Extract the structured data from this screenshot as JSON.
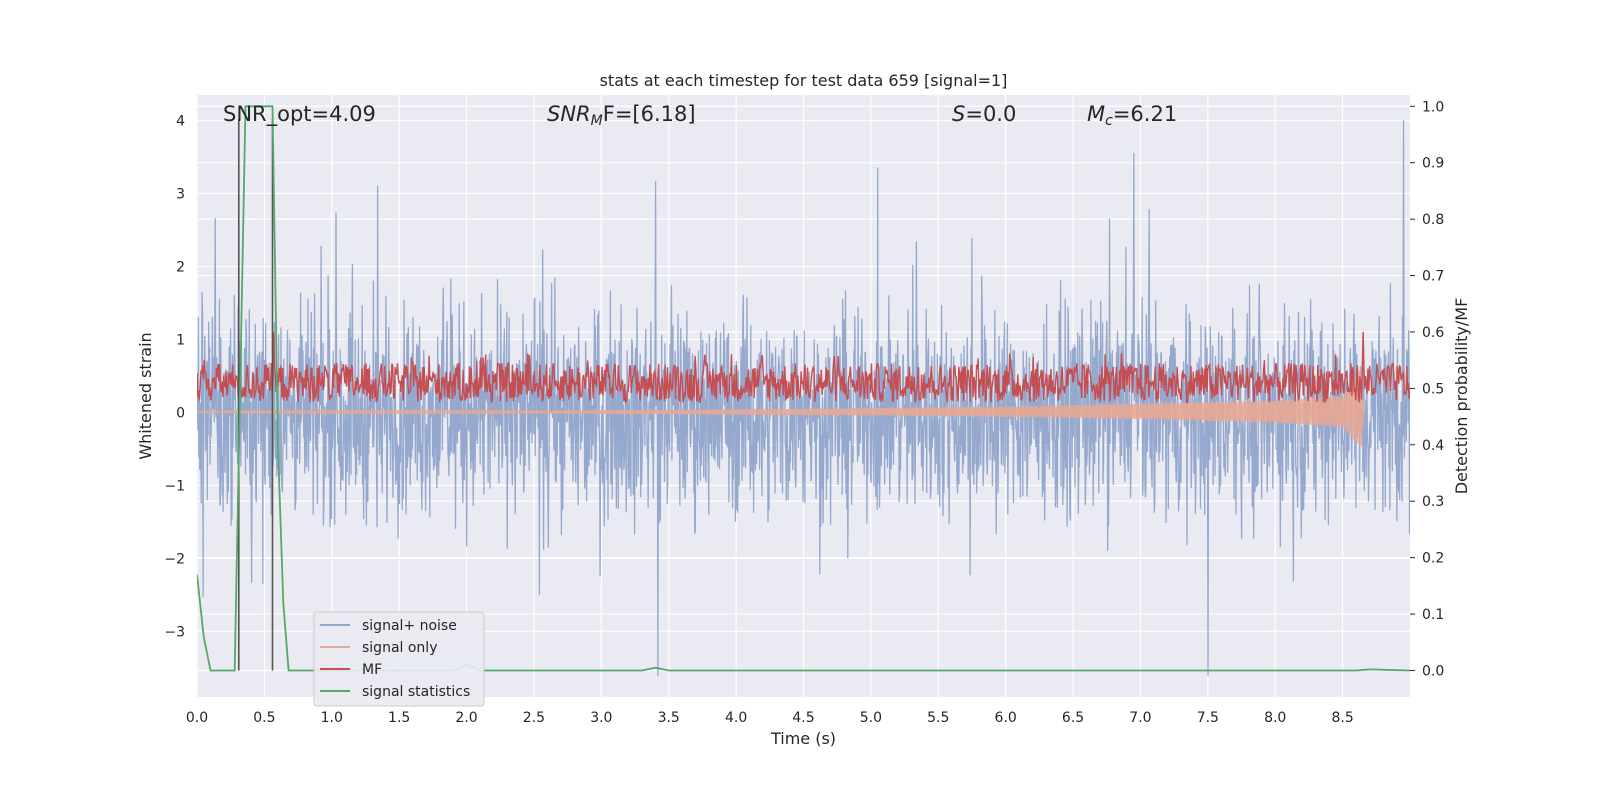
{
  "chart_data": {
    "type": "line",
    "title": "stats at each timestep for test data 659 [signal=1]",
    "xlabel": "Time (s)",
    "ylabel": "Whitened strain",
    "ylabel_right": "Detection probability/MF",
    "xlim": [
      0.0,
      9.0
    ],
    "ylim": [
      -3.9,
      4.35
    ],
    "ylim_right": [
      -0.047,
      1.02
    ],
    "xticks": [
      "0.0",
      "0.5",
      "1.0",
      "1.5",
      "2.0",
      "2.5",
      "3.0",
      "3.5",
      "4.0",
      "4.5",
      "5.0",
      "5.5",
      "6.0",
      "6.5",
      "7.0",
      "7.5",
      "8.0",
      "8.5"
    ],
    "yticks_left": [
      "4",
      "3",
      "2",
      "1",
      "0",
      "−1",
      "−2",
      "−3"
    ],
    "yticks_right": [
      "1.0",
      "0.9",
      "0.8",
      "0.7",
      "0.6",
      "0.5",
      "0.4",
      "0.3",
      "0.2",
      "0.1",
      "0.0"
    ],
    "grid": true,
    "legend_position": "lower-left",
    "annotations": {
      "snr_opt": "SNR_opt=4.09",
      "snr_mf_sym": "SNR",
      "snr_mf_sub": "M",
      "snr_mf_rest": "F=[6.18]",
      "s_sym": "S",
      "s_rest": "=0.0",
      "mc_sym": "M",
      "mc_sub": "c",
      "mc_rest": "=6.21"
    },
    "vertical_markers_x": [
      0.31,
      0.56
    ],
    "series": [
      {
        "name": "signal+ noise",
        "axis": "left",
        "color": "#95a8cd",
        "description_range": [
          -3.6,
          4.0
        ],
        "notable_peaks": [
          [
            1.34,
            3.1
          ],
          [
            5.05,
            3.35
          ],
          [
            6.95,
            3.55
          ],
          [
            8.95,
            4.0
          ],
          [
            3.42,
            -3.6
          ],
          [
            7.5,
            -3.6
          ]
        ]
      },
      {
        "name": "signal only",
        "axis": "left",
        "color": "#e8a793",
        "x": [
          0.0,
          1.0,
          2.0,
          3.0,
          4.0,
          5.0,
          6.0,
          7.0,
          8.0,
          8.5,
          8.64,
          8.66
        ],
        "envelope_low": [
          0.0,
          -0.01,
          -0.01,
          -0.02,
          -0.03,
          -0.04,
          -0.06,
          -0.09,
          -0.14,
          -0.2,
          -0.48,
          0.0
        ],
        "envelope_high": [
          0.02,
          0.02,
          0.02,
          0.03,
          0.04,
          0.06,
          0.08,
          0.12,
          0.16,
          0.22,
          0.62,
          0.0
        ]
      },
      {
        "name": "MF",
        "axis": "right",
        "color": "#c44e52",
        "baseline": 0.5,
        "band": [
          0.475,
          0.545
        ],
        "peaks": [
          [
            0.57,
            0.6
          ],
          [
            8.65,
            0.6
          ],
          [
            8.45,
            0.56
          ]
        ]
      },
      {
        "name": "signal statistics",
        "axis": "right",
        "color": "#55a868",
        "x": [
          0.0,
          0.05,
          0.1,
          0.25,
          0.28,
          0.36,
          0.42,
          0.5,
          0.56,
          0.6,
          0.64,
          0.68,
          0.7,
          1.0,
          1.9,
          2.0,
          2.1,
          3.3,
          3.4,
          3.5,
          8.6,
          8.7,
          9.0
        ],
        "y": [
          0.17,
          0.06,
          0.0,
          0.0,
          0.0,
          1.0,
          1.0,
          1.0,
          1.0,
          0.4,
          0.12,
          0.0,
          0.0,
          0.0,
          0.0,
          0.01,
          0.0,
          0.0,
          0.005,
          0.0,
          0.0,
          0.002,
          0.0
        ]
      }
    ]
  }
}
